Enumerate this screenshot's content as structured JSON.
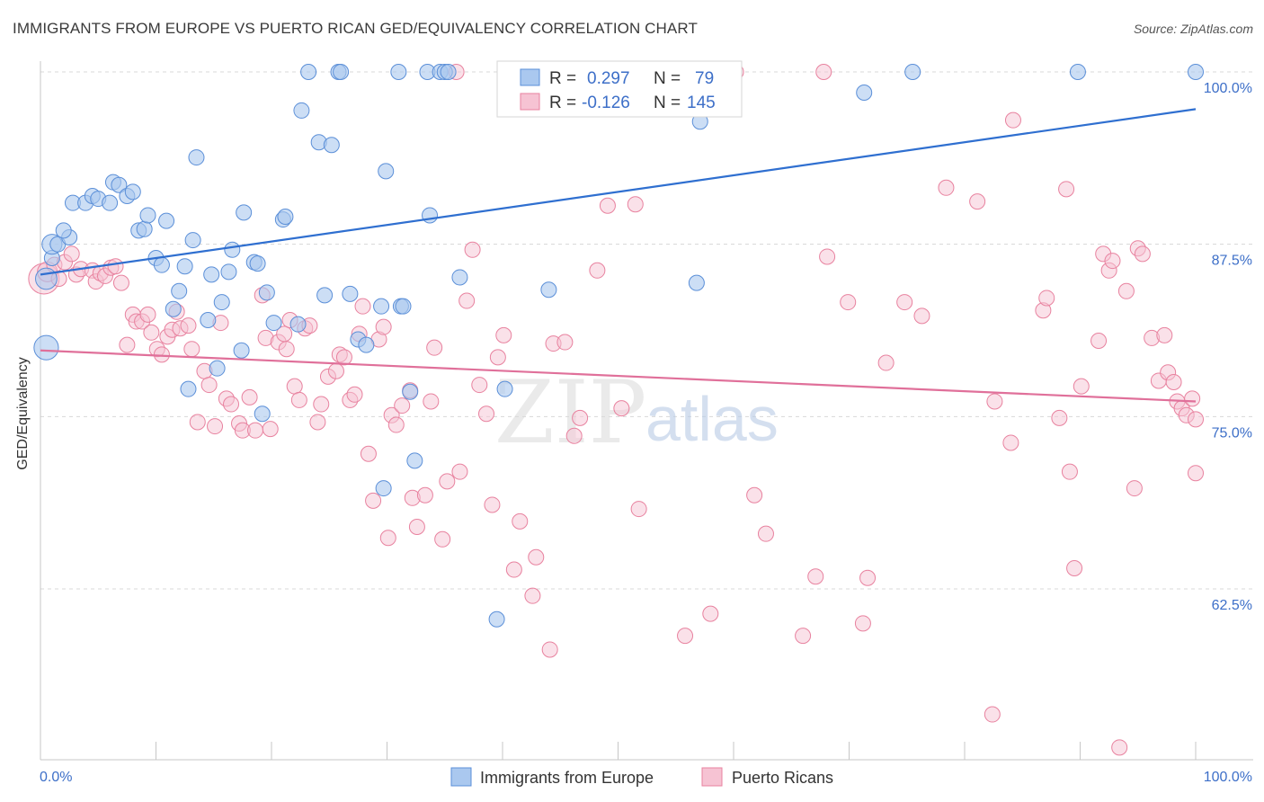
{
  "title": "IMMIGRANTS FROM EUROPE VS PUERTO RICAN GED/EQUIVALENCY CORRELATION CHART",
  "source": "Source: ZipAtlas.com",
  "watermark": {
    "zip": "ZIP",
    "atlas": "atlas"
  },
  "colors": {
    "blue_fill": "#aac8ef",
    "blue_stroke": "#5b8fd8",
    "blue_line": "#2f6fd0",
    "pink_fill": "#f6c3d3",
    "pink_stroke": "#e8829f",
    "pink_line": "#e0709a",
    "grid": "#d8d8d8",
    "axis_text": "#3d6fc8"
  },
  "legend": {
    "rows": [
      {
        "r_label": "R =",
        "r_value": "0.297",
        "n_label": "N =",
        "n_value": "79"
      },
      {
        "r_label": "R =",
        "r_value": "-0.126",
        "n_label": "N =",
        "n_value": "145"
      }
    ]
  },
  "bottom_legend": [
    "Immigrants from Europe",
    "Puerto Ricans"
  ],
  "chart_data": {
    "type": "scatter",
    "title": "IMMIGRANTS FROM EUROPE VS PUERTO RICAN GED/EQUIVALENCY CORRELATION CHART",
    "xlabel": "",
    "ylabel": "GED/Equivalency",
    "x_tick_labels": [
      "0.0%",
      "100.0%"
    ],
    "y_tick_labels": [
      "100.0%",
      "87.5%",
      "75.0%",
      "62.5%"
    ],
    "y_ticks": [
      100.0,
      87.5,
      75.0,
      62.5
    ],
    "xlim": [
      0,
      100
    ],
    "ylim": [
      50,
      101.2
    ],
    "grid": true,
    "legend_position": "top-center",
    "series": [
      {
        "name": "Immigrants from Europe",
        "color": "#aac8ef",
        "trend": {
          "x": [
            0,
            100
          ],
          "y": [
            85.3,
            97.3
          ]
        },
        "points": [
          [
            0.5,
            80.0,
            1.6
          ],
          [
            0.5,
            85.0,
            1.4
          ],
          [
            1.0,
            86.5,
            1.0
          ],
          [
            1.0,
            87.5,
            1.3
          ],
          [
            1.5,
            87.5,
            1.0
          ],
          [
            2.5,
            88.0,
            1.0
          ],
          [
            2.0,
            88.5,
            1.0
          ],
          [
            2.8,
            90.5,
            1.0
          ],
          [
            3.9,
            90.5,
            1.0
          ],
          [
            4.5,
            91.0,
            1.0
          ],
          [
            5.0,
            90.8,
            1.0
          ],
          [
            6.0,
            90.5,
            1.0
          ],
          [
            6.3,
            92.0,
            1.0
          ],
          [
            6.8,
            91.8,
            1.0
          ],
          [
            7.5,
            91.0,
            1.0
          ],
          [
            8.0,
            91.3,
            1.0
          ],
          [
            8.5,
            88.5,
            1.0
          ],
          [
            9.0,
            88.6,
            1.0
          ],
          [
            9.3,
            89.6,
            1.0
          ],
          [
            10.0,
            86.5,
            1.0
          ],
          [
            10.5,
            86.0,
            1.0
          ],
          [
            10.9,
            89.2,
            1.0
          ],
          [
            11.5,
            82.8,
            1.0
          ],
          [
            12.0,
            84.1,
            1.0
          ],
          [
            12.5,
            85.9,
            1.0
          ],
          [
            12.8,
            77.0,
            1.0
          ],
          [
            13.2,
            87.8,
            1.0
          ],
          [
            13.5,
            93.8,
            1.0
          ],
          [
            14.5,
            82.0,
            1.0
          ],
          [
            14.8,
            85.3,
            1.0
          ],
          [
            15.3,
            78.5,
            1.0
          ],
          [
            15.7,
            83.3,
            1.0
          ],
          [
            16.3,
            85.5,
            1.0
          ],
          [
            16.6,
            87.1,
            1.0
          ],
          [
            17.4,
            79.8,
            1.0
          ],
          [
            17.6,
            89.8,
            1.0
          ],
          [
            18.5,
            86.2,
            1.0
          ],
          [
            18.8,
            86.1,
            1.0
          ],
          [
            19.2,
            75.2,
            1.0
          ],
          [
            19.6,
            84.0,
            1.0
          ],
          [
            20.2,
            81.8,
            1.0
          ],
          [
            21.0,
            89.3,
            1.0
          ],
          [
            21.2,
            89.5,
            1.0
          ],
          [
            22.3,
            81.7,
            1.0
          ],
          [
            22.6,
            97.2,
            1.0
          ],
          [
            23.2,
            100.0,
            1.0
          ],
          [
            24.1,
            94.9,
            1.0
          ],
          [
            24.6,
            83.8,
            1.0
          ],
          [
            25.2,
            94.7,
            1.0
          ],
          [
            25.8,
            100.0,
            1.0
          ],
          [
            26.0,
            100.0,
            1.0
          ],
          [
            26.8,
            83.9,
            1.0
          ],
          [
            27.5,
            80.6,
            1.0
          ],
          [
            28.2,
            80.2,
            1.0
          ],
          [
            29.5,
            83.0,
            1.0
          ],
          [
            29.7,
            69.8,
            1.0
          ],
          [
            29.9,
            92.8,
            1.0
          ],
          [
            31.0,
            100.0,
            1.0
          ],
          [
            31.2,
            83.0,
            1.0
          ],
          [
            31.4,
            83.0,
            1.0
          ],
          [
            32.0,
            76.8,
            1.0
          ],
          [
            32.4,
            71.8,
            1.0
          ],
          [
            33.5,
            100.0,
            1.0
          ],
          [
            33.7,
            89.6,
            1.0
          ],
          [
            34.6,
            100.0,
            1.0
          ],
          [
            35.0,
            100.0,
            1.0
          ],
          [
            35.3,
            100.0,
            1.0
          ],
          [
            36.3,
            85.1,
            1.0
          ],
          [
            39.5,
            60.3,
            1.0
          ],
          [
            40.2,
            77.0,
            1.0
          ],
          [
            44.0,
            84.2,
            1.0
          ],
          [
            48.0,
            100.0,
            1.0
          ],
          [
            52.8,
            100.0,
            1.0
          ],
          [
            56.8,
            84.7,
            1.0
          ],
          [
            57.1,
            96.4,
            1.0
          ],
          [
            71.3,
            98.5,
            1.0
          ],
          [
            75.5,
            100.0,
            1.0
          ],
          [
            89.8,
            100.0,
            1.0
          ],
          [
            100.0,
            100.0,
            1.0
          ]
        ]
      },
      {
        "name": "Puerto Ricans",
        "color": "#f6c3d3",
        "trend": {
          "x": [
            0,
            100
          ],
          "y": [
            79.8,
            76.1
          ]
        },
        "points": [
          [
            0.3,
            85.0,
            2.0
          ],
          [
            0.6,
            85.5,
            1.3
          ],
          [
            1.2,
            86.0,
            1.0
          ],
          [
            1.6,
            85.0,
            1.0
          ],
          [
            2.1,
            86.2,
            1.0
          ],
          [
            2.7,
            86.8,
            1.0
          ],
          [
            3.1,
            85.3,
            1.0
          ],
          [
            3.5,
            85.7,
            1.0
          ],
          [
            4.5,
            85.6,
            1.0
          ],
          [
            4.8,
            84.8,
            1.0
          ],
          [
            5.2,
            85.4,
            1.0
          ],
          [
            5.6,
            85.2,
            1.0
          ],
          [
            6.1,
            85.8,
            1.0
          ],
          [
            6.5,
            85.9,
            1.0
          ],
          [
            7.0,
            84.7,
            1.0
          ],
          [
            7.5,
            80.2,
            1.0
          ],
          [
            8.0,
            82.4,
            1.0
          ],
          [
            8.3,
            81.9,
            1.0
          ],
          [
            8.8,
            81.9,
            1.0
          ],
          [
            9.3,
            82.4,
            1.0
          ],
          [
            9.6,
            81.1,
            1.0
          ],
          [
            10.1,
            79.9,
            1.0
          ],
          [
            10.5,
            79.5,
            1.0
          ],
          [
            11.0,
            80.8,
            1.0
          ],
          [
            11.4,
            81.3,
            1.0
          ],
          [
            11.8,
            82.6,
            1.0
          ],
          [
            12.1,
            81.4,
            1.0
          ],
          [
            12.8,
            81.6,
            1.0
          ],
          [
            13.1,
            79.9,
            1.0
          ],
          [
            13.6,
            74.6,
            1.0
          ],
          [
            14.2,
            78.3,
            1.0
          ],
          [
            14.6,
            77.3,
            1.0
          ],
          [
            15.1,
            74.3,
            1.0
          ],
          [
            15.6,
            81.8,
            1.0
          ],
          [
            16.1,
            76.3,
            1.0
          ],
          [
            16.5,
            75.9,
            1.0
          ],
          [
            17.2,
            74.5,
            1.0
          ],
          [
            17.5,
            74.0,
            1.0
          ],
          [
            18.1,
            76.4,
            1.0
          ],
          [
            18.6,
            74.0,
            1.0
          ],
          [
            19.2,
            83.8,
            1.0
          ],
          [
            19.5,
            80.7,
            1.0
          ],
          [
            19.9,
            74.1,
            1.0
          ],
          [
            20.6,
            80.4,
            1.0
          ],
          [
            21.1,
            81.0,
            1.0
          ],
          [
            21.3,
            79.9,
            1.0
          ],
          [
            21.6,
            82.0,
            1.0
          ],
          [
            22.0,
            77.2,
            1.0
          ],
          [
            22.4,
            76.2,
            1.0
          ],
          [
            22.9,
            81.4,
            1.0
          ],
          [
            23.3,
            81.6,
            1.0
          ],
          [
            24.0,
            74.6,
            1.0
          ],
          [
            24.3,
            75.9,
            1.0
          ],
          [
            24.9,
            77.9,
            1.0
          ],
          [
            25.6,
            78.3,
            1.0
          ],
          [
            25.9,
            79.5,
            1.0
          ],
          [
            26.3,
            79.3,
            1.0
          ],
          [
            26.8,
            76.2,
            1.0
          ],
          [
            27.2,
            76.6,
            1.0
          ],
          [
            27.6,
            81.0,
            1.0
          ],
          [
            27.9,
            83.0,
            1.0
          ],
          [
            28.4,
            72.3,
            1.0
          ],
          [
            28.8,
            68.9,
            1.0
          ],
          [
            29.3,
            80.6,
            1.0
          ],
          [
            29.7,
            81.5,
            1.0
          ],
          [
            30.1,
            66.2,
            1.0
          ],
          [
            30.4,
            75.1,
            1.0
          ],
          [
            30.8,
            74.4,
            1.0
          ],
          [
            31.3,
            75.8,
            1.0
          ],
          [
            32.0,
            76.9,
            1.0
          ],
          [
            32.2,
            69.1,
            1.0
          ],
          [
            32.6,
            67.0,
            1.0
          ],
          [
            33.3,
            69.3,
            1.0
          ],
          [
            33.8,
            76.1,
            1.0
          ],
          [
            34.1,
            80.0,
            1.0
          ],
          [
            34.8,
            66.1,
            1.0
          ],
          [
            35.2,
            70.3,
            1.0
          ],
          [
            36.0,
            100.0,
            1.0
          ],
          [
            36.3,
            71.0,
            1.0
          ],
          [
            36.9,
            83.4,
            1.0
          ],
          [
            37.4,
            87.1,
            1.0
          ],
          [
            38.0,
            77.3,
            1.0
          ],
          [
            38.6,
            75.2,
            1.0
          ],
          [
            39.1,
            68.6,
            1.0
          ],
          [
            39.6,
            79.3,
            1.0
          ],
          [
            40.1,
            80.9,
            1.0
          ],
          [
            41.0,
            63.9,
            1.0
          ],
          [
            41.5,
            67.4,
            1.0
          ],
          [
            42.6,
            62.0,
            1.0
          ],
          [
            42.9,
            64.8,
            1.0
          ],
          [
            44.1,
            58.1,
            1.0
          ],
          [
            44.4,
            80.3,
            1.0
          ],
          [
            45.4,
            80.4,
            1.0
          ],
          [
            46.2,
            73.6,
            1.0
          ],
          [
            46.7,
            74.9,
            1.0
          ],
          [
            48.2,
            85.6,
            1.0
          ],
          [
            49.1,
            90.3,
            1.0
          ],
          [
            50.3,
            75.6,
            1.0
          ],
          [
            51.5,
            90.4,
            1.0
          ],
          [
            51.8,
            68.3,
            1.0
          ],
          [
            54.6,
            100.0,
            1.0
          ],
          [
            55.8,
            59.1,
            1.0
          ],
          [
            58.0,
            60.7,
            1.0
          ],
          [
            59.8,
            100.0,
            1.0
          ],
          [
            60.2,
            100.0,
            1.0
          ],
          [
            61.8,
            69.3,
            1.0
          ],
          [
            62.8,
            66.5,
            1.0
          ],
          [
            66.0,
            59.1,
            1.0
          ],
          [
            67.1,
            63.4,
            1.0
          ],
          [
            67.8,
            100.0,
            1.0
          ],
          [
            68.1,
            86.6,
            1.0
          ],
          [
            69.9,
            83.3,
            1.0
          ],
          [
            71.2,
            60.0,
            1.0
          ],
          [
            71.6,
            63.3,
            1.0
          ],
          [
            73.2,
            78.9,
            1.0
          ],
          [
            74.8,
            83.3,
            1.0
          ],
          [
            76.3,
            82.3,
            1.0
          ],
          [
            78.4,
            91.6,
            1.0
          ],
          [
            81.1,
            90.6,
            1.0
          ],
          [
            82.4,
            53.4,
            1.0
          ],
          [
            82.6,
            76.1,
            1.0
          ],
          [
            84.0,
            73.1,
            1.0
          ],
          [
            84.2,
            96.5,
            1.0
          ],
          [
            86.8,
            82.7,
            1.0
          ],
          [
            87.1,
            83.6,
            1.0
          ],
          [
            88.2,
            74.9,
            1.0
          ],
          [
            88.8,
            91.5,
            1.0
          ],
          [
            89.1,
            71.0,
            1.0
          ],
          [
            89.5,
            64.0,
            1.0
          ],
          [
            90.1,
            77.2,
            1.0
          ],
          [
            91.6,
            80.5,
            1.0
          ],
          [
            92.0,
            86.8,
            1.0
          ],
          [
            92.5,
            85.6,
            1.0
          ],
          [
            92.8,
            86.3,
            1.0
          ],
          [
            93.4,
            51.0,
            1.0
          ],
          [
            94.0,
            84.1,
            1.0
          ],
          [
            94.7,
            69.8,
            1.0
          ],
          [
            95.0,
            87.2,
            1.0
          ],
          [
            95.4,
            86.8,
            1.0
          ],
          [
            96.2,
            80.7,
            1.0
          ],
          [
            96.8,
            77.6,
            1.0
          ],
          [
            97.3,
            80.9,
            1.0
          ],
          [
            97.6,
            78.2,
            1.0
          ],
          [
            98.1,
            77.5,
            1.0
          ],
          [
            98.4,
            76.1,
            1.0
          ],
          [
            98.8,
            75.6,
            1.0
          ],
          [
            99.2,
            75.1,
            1.0
          ],
          [
            99.7,
            76.3,
            1.0
          ],
          [
            100.0,
            74.8,
            1.0
          ],
          [
            100.0,
            70.9,
            1.0
          ]
        ]
      }
    ]
  }
}
